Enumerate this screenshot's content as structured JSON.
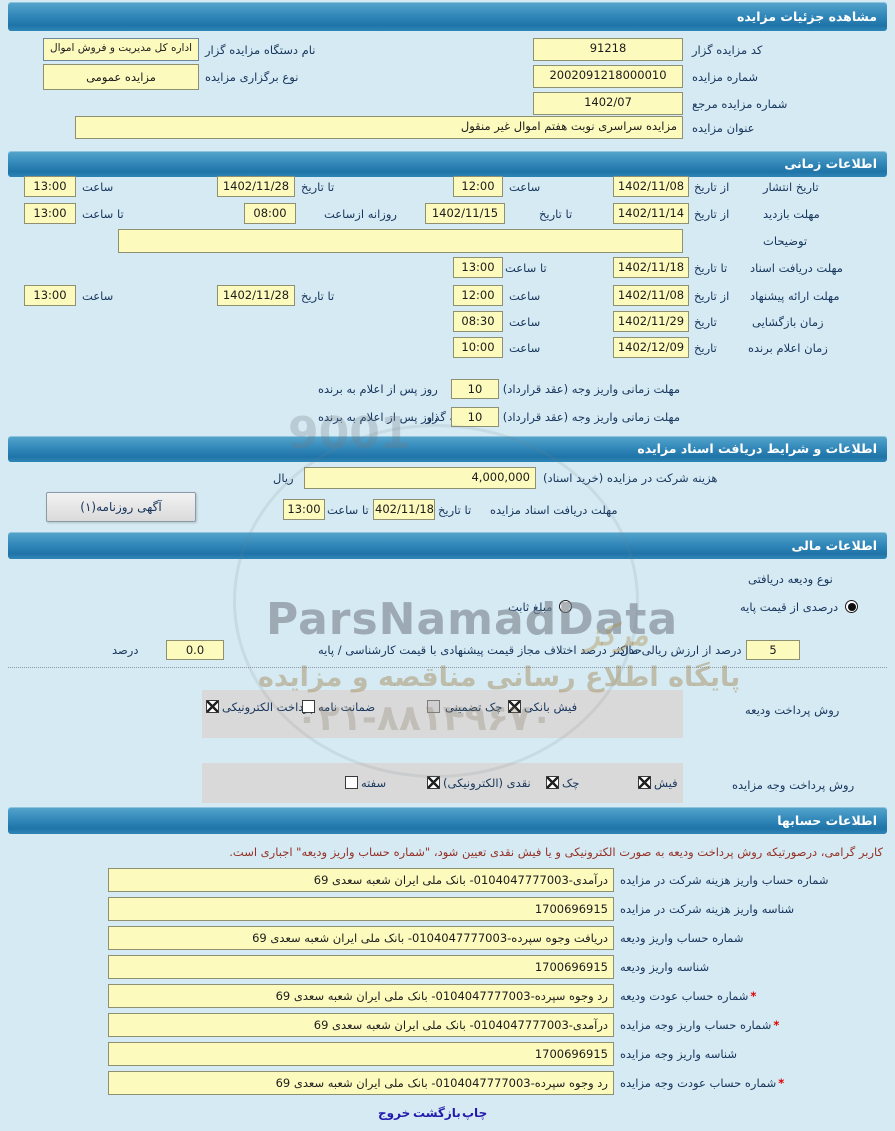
{
  "header": {
    "title": "مشاهده جزئیات مزایده"
  },
  "general": {
    "bidder_code_label": "کد مزایده گزار",
    "bidder_code": "91218",
    "org_name_label": "نام دستگاه مزایده گزار",
    "org_name": "اداره کل مدیریت و فروش اموال",
    "auction_no_label": "شماره مزایده",
    "auction_no": "2002091218000010",
    "type_label": "نوع برگزاری مزایده",
    "type_value": "مزایده عمومی",
    "ref_no_label": "شماره مزایده مرجع",
    "ref_no": "1402/07",
    "title_label": "عنوان مزایده",
    "title_value": "مزایده سراسری نوبت هفتم اموال غیر منقول"
  },
  "time_section": {
    "title": "اطلاعات زمانی",
    "labels": {
      "from_date": "از تاریخ",
      "to_date": "تا تاریخ",
      "date": "تاریخ",
      "hour": "ساعت",
      "to_hour": "تا ساعت",
      "daily_from": "روزانه ازساعت",
      "days_after": "روز پس از اعلام به برنده"
    },
    "publish": {
      "label": "تاریخ انتشار",
      "from_date": "1402/11/08",
      "from_time": "12:00",
      "to_date": "1402/11/28",
      "to_time": "13:00"
    },
    "visit": {
      "label": "مهلت بازدید",
      "from_date": "1402/11/14",
      "to_date": "1402/11/15",
      "daily_from": "08:00",
      "to_time": "13:00"
    },
    "notes": {
      "label": "توضیحات",
      "value": ""
    },
    "doc_deadline": {
      "label": "مهلت دریافت اسناد",
      "to_date": "1402/11/18",
      "to_time": "13:00"
    },
    "offer": {
      "label": "مهلت ارائه پیشنهاد",
      "from_date": "1402/11/08",
      "from_time": "12:00",
      "to_date": "1402/11/28",
      "to_time": "13:00"
    },
    "opening": {
      "label": "زمان بازگشایی",
      "date": "1402/11/29",
      "time": "08:30"
    },
    "winner": {
      "label": "زمان اعلام برنده",
      "date": "1402/12/09",
      "time": "10:00"
    },
    "pay_contract": {
      "label": "مهلت زمانی واریز وجه (عقد قرارداد)",
      "value": "10"
    },
    "pay_guarantor": {
      "label": "مهلت زمانی واریز وجه (عقد قرارداد) برای وثیقه گذار",
      "value": "10"
    }
  },
  "docs_section": {
    "title": "اطلاعات و شرایط دریافت اسناد مزایده",
    "fee": {
      "label": "هزینه شرکت در مزایده (خرید اسناد)",
      "value": "4,000,000",
      "unit": "ریال"
    },
    "deadline": {
      "label": "مهلت دریافت اسناد مزایده",
      "to_date_label": "تا تاریخ",
      "date": "1402/11/18",
      "to_hour_label": "تا ساعت",
      "time": "13:00"
    },
    "newspaper_button": "آگهی روزنامه(۱)"
  },
  "financial_section": {
    "title": "اطلاعات مالی",
    "deposit_type_label": "نوع ودیعه دریافتی",
    "radio_percent": "درصدی از قیمت پایه",
    "radio_fixed": "مبلغ ثابت",
    "percent_value": "5",
    "percent_label": "درصد از ارزش ریالی مال",
    "max_diff_label": "حداکثر درصد اختلاف مجاز قیمت پیشنهادی با قیمت کارشناسی / پایه",
    "max_diff_value": "0.0",
    "percent_unit": "درصد",
    "deposit_methods_label": "روش پرداخت ودیعه",
    "deposit_methods": [
      {
        "label": "پرداخت الکترونیکی",
        "checked": true
      },
      {
        "label": "ضمانت نامه",
        "checked": false
      },
      {
        "label": "چک تضمینی",
        "checked": false,
        "disabled": true
      },
      {
        "label": "فیش بانکی",
        "checked": true
      }
    ],
    "payment_methods_label": "روش پرداخت وجه مزایده",
    "payment_methods": [
      {
        "label": "سفته",
        "checked": false
      },
      {
        "label": "نقدی (الکترونیکی)",
        "checked": true
      },
      {
        "label": "چک",
        "checked": true
      },
      {
        "label": "فیش",
        "checked": true
      }
    ]
  },
  "accounts_section": {
    "title": "اطلاعات حسابها",
    "notice": "کاربر گرامی، درصورتیکه روش پرداخت ودیعه به صورت الکترونیکی و یا فیش نقدی تعیین شود، \"شماره حساب واریز ودیعه\" اجباری است.",
    "rows": [
      {
        "label": "شماره حساب واریز هزینه شرکت در مزایده",
        "value": "درآمدی-0104047777003- بانک ملی ایران شعبه سعدی 69",
        "required": false
      },
      {
        "label": "شناسه واریز هزینه شرکت در مزایده",
        "value": "1700696915",
        "required": false
      },
      {
        "label": "شماره حساب واریز ودیعه",
        "value": "دریافت وجوه سپرده-0104047777003- بانک ملی ایران شعبه سعدی 69",
        "required": false
      },
      {
        "label": "شناسه واریز ودیعه",
        "value": "1700696915",
        "required": false
      },
      {
        "label": "شماره حساب عودت ودیعه",
        "value": "رد وجوه سپرده-0104047777003- بانک ملی ایران شعبه سعدی 69",
        "required": true
      },
      {
        "label": "شماره حساب واریز وجه مزایده",
        "value": "درآمدی-0104047777003- بانک ملی ایران شعبه سعدی 69",
        "required": true
      },
      {
        "label": "شناسه واریز وجه مزایده",
        "value": "1700696915",
        "required": false
      },
      {
        "label": "شماره حساب عودت وجه مزایده",
        "value": "رد وجوه سپرده-0104047777003- بانک ملی ایران شعبه سعدی 69",
        "required": true
      }
    ]
  },
  "footer": {
    "print": "چاپ",
    "back": "بازگشت",
    "exit": "خروج"
  },
  "watermark": {
    "brand": "ParsNamadData",
    "line": "پایگاه اطلاع رسانی مناقصه و مزایده",
    "phone": "۰۲۱-۸۸۱۴۹۶۷۰",
    "cert": "9001",
    "center_word": "مرکز"
  },
  "colors": {
    "accent_bar": "#2e86b8",
    "field_bg": "#fcfabd",
    "notice": "#943126",
    "link": "#221bad"
  }
}
